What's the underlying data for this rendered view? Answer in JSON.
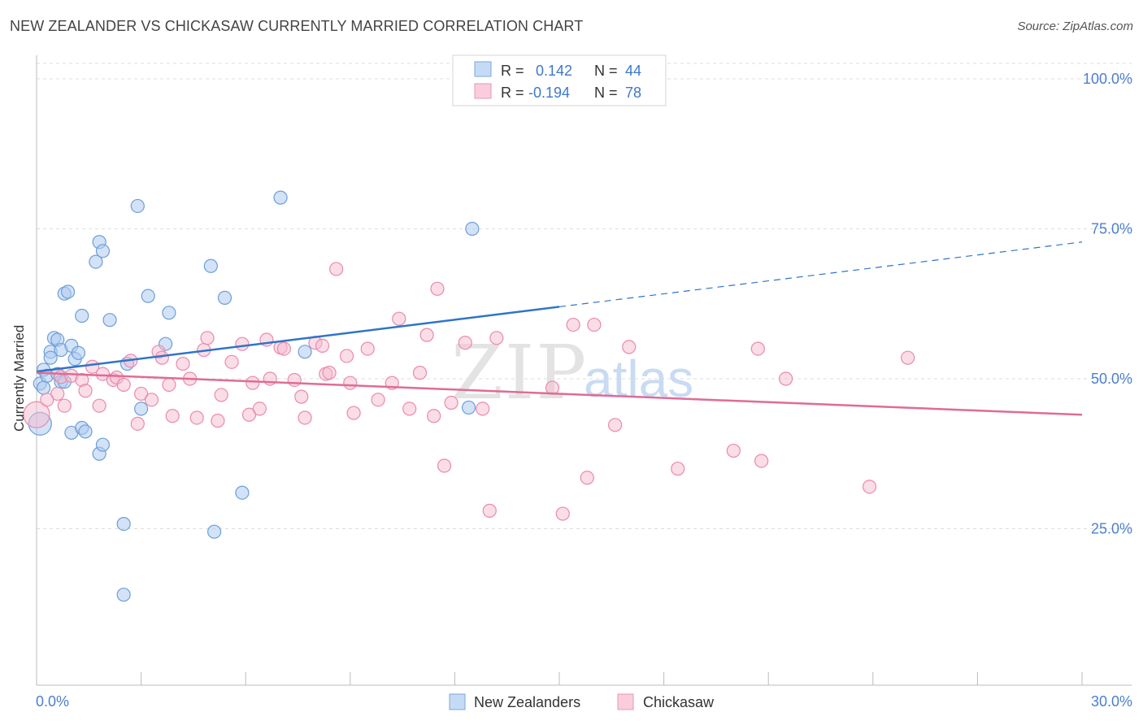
{
  "title": "NEW ZEALANDER VS CHICKASAW CURRENTLY MARRIED CORRELATION CHART",
  "source": "Source: ZipAtlas.com",
  "watermark": {
    "zip": "ZIP",
    "atlas": "atlas"
  },
  "stats": [
    {
      "r_label": "R =",
      "r_value": "0.142",
      "n_label": "N =",
      "n_value": "44",
      "color": "#5b9bd5"
    },
    {
      "r_label": "R =",
      "r_value": "-0.194",
      "n_label": "N =",
      "n_value": "78",
      "color": "#e8739a"
    }
  ],
  "legend": [
    "New Zealanders",
    "Chickasaw"
  ],
  "colors": {
    "blue_fill": "#aecbf0",
    "blue_stroke": "#6b9fd8",
    "blue_line": "#2f74c8",
    "pink_fill": "#f6bcd0",
    "pink_stroke": "#e98aac",
    "pink_line": "#e06b96",
    "axis_text": "#4b7fcf",
    "grid": "#dddddd"
  },
  "chart_data": {
    "type": "scatter",
    "title": "NEW ZEALANDER VS CHICKASAW CURRENTLY MARRIED CORRELATION CHART",
    "xlabel": "",
    "ylabel": "Currently Married",
    "xlim": [
      0,
      30
    ],
    "ylim": [
      0,
      100
    ],
    "x_tick_labels": [
      "0.0%",
      "30.0%"
    ],
    "y_ticks": [
      25,
      50,
      75,
      100
    ],
    "y_tick_labels": [
      "25.0%",
      "50.0%",
      "75.0%",
      "100.0%"
    ],
    "grid": true,
    "legend_position": "bottom",
    "series": [
      {
        "name": "New Zealanders",
        "points": [
          [
            0.1,
            42.5
          ],
          [
            0.1,
            49.2
          ],
          [
            0.2,
            51.5
          ],
          [
            0.2,
            48.5
          ],
          [
            0.3,
            50.5
          ],
          [
            0.4,
            54.5
          ],
          [
            0.4,
            53.5
          ],
          [
            0.5,
            56.8
          ],
          [
            0.6,
            56.5
          ],
          [
            0.6,
            50.8
          ],
          [
            0.7,
            49.5
          ],
          [
            0.7,
            54.8
          ],
          [
            0.8,
            49.5
          ],
          [
            0.8,
            64.2
          ],
          [
            0.9,
            64.5
          ],
          [
            1.0,
            55.5
          ],
          [
            1.0,
            41.0
          ],
          [
            1.1,
            53.3
          ],
          [
            1.2,
            54.3
          ],
          [
            1.3,
            41.8
          ],
          [
            1.3,
            60.5
          ],
          [
            1.4,
            41.2
          ],
          [
            1.7,
            69.5
          ],
          [
            1.8,
            37.5
          ],
          [
            1.8,
            72.8
          ],
          [
            1.9,
            71.3
          ],
          [
            1.9,
            39.0
          ],
          [
            2.1,
            59.8
          ],
          [
            2.5,
            14.0
          ],
          [
            2.5,
            25.8
          ],
          [
            2.6,
            52.5
          ],
          [
            2.9,
            78.8
          ],
          [
            3.0,
            45.0
          ],
          [
            3.2,
            63.8
          ],
          [
            3.7,
            55.8
          ],
          [
            3.8,
            61.0
          ],
          [
            5.0,
            68.8
          ],
          [
            5.1,
            24.5
          ],
          [
            5.4,
            63.5
          ],
          [
            5.9,
            31.0
          ],
          [
            7.0,
            80.2
          ],
          [
            7.7,
            54.5
          ],
          [
            12.4,
            45.2
          ],
          [
            12.5,
            75.0
          ]
        ]
      },
      {
        "name": "Chickasaw",
        "points": [
          [
            0.0,
            44.0
          ],
          [
            0.6,
            47.5
          ],
          [
            0.7,
            50.3
          ],
          [
            0.8,
            45.5
          ],
          [
            1.0,
            50.5
          ],
          [
            1.3,
            49.8
          ],
          [
            1.4,
            48.0
          ],
          [
            1.6,
            52.0
          ],
          [
            1.8,
            45.5
          ],
          [
            1.9,
            50.8
          ],
          [
            2.2,
            49.8
          ],
          [
            2.3,
            50.2
          ],
          [
            2.5,
            49.0
          ],
          [
            2.7,
            53.0
          ],
          [
            2.9,
            42.5
          ],
          [
            3.0,
            47.5
          ],
          [
            3.3,
            46.5
          ],
          [
            3.5,
            54.5
          ],
          [
            3.6,
            53.5
          ],
          [
            3.8,
            49.0
          ],
          [
            3.9,
            43.8
          ],
          [
            4.2,
            52.5
          ],
          [
            4.4,
            50.0
          ],
          [
            4.6,
            43.5
          ],
          [
            4.8,
            54.8
          ],
          [
            4.9,
            56.8
          ],
          [
            5.2,
            43.0
          ],
          [
            5.3,
            47.3
          ],
          [
            5.6,
            52.8
          ],
          [
            5.9,
            55.8
          ],
          [
            6.1,
            44.0
          ],
          [
            6.2,
            49.3
          ],
          [
            6.4,
            45.0
          ],
          [
            6.6,
            56.5
          ],
          [
            6.7,
            50.0
          ],
          [
            7.0,
            55.2
          ],
          [
            7.1,
            55.0
          ],
          [
            7.4,
            49.8
          ],
          [
            7.6,
            47.0
          ],
          [
            7.7,
            43.5
          ],
          [
            8.0,
            56.0
          ],
          [
            8.2,
            55.5
          ],
          [
            8.3,
            50.8
          ],
          [
            8.4,
            51.0
          ],
          [
            8.6,
            68.3
          ],
          [
            8.9,
            53.8
          ],
          [
            9.0,
            49.3
          ],
          [
            9.1,
            44.3
          ],
          [
            9.5,
            55.0
          ],
          [
            9.8,
            46.5
          ],
          [
            10.2,
            49.3
          ],
          [
            10.4,
            60.0
          ],
          [
            10.7,
            45.0
          ],
          [
            11.0,
            51.0
          ],
          [
            11.2,
            57.3
          ],
          [
            11.4,
            43.8
          ],
          [
            11.5,
            65.0
          ],
          [
            11.7,
            35.5
          ],
          [
            11.9,
            46.0
          ],
          [
            12.3,
            56.0
          ],
          [
            12.8,
            45.0
          ],
          [
            13.0,
            28.0
          ],
          [
            13.2,
            56.8
          ],
          [
            14.8,
            48.5
          ],
          [
            15.1,
            27.5
          ],
          [
            15.4,
            59.0
          ],
          [
            15.8,
            33.5
          ],
          [
            16.0,
            59.0
          ],
          [
            16.6,
            42.3
          ],
          [
            17.0,
            55.3
          ],
          [
            18.4,
            35.0
          ],
          [
            20.0,
            38.0
          ],
          [
            20.7,
            55.0
          ],
          [
            20.8,
            36.3
          ],
          [
            21.5,
            50.0
          ],
          [
            23.9,
            32.0
          ],
          [
            25.0,
            53.5
          ],
          [
            0.3,
            46.5
          ]
        ]
      }
    ],
    "trendlines": [
      {
        "series": "New Zealanders",
        "x0": 0,
        "y0": 51.2,
        "x1": 15.0,
        "y1": 62.0,
        "dashed_to_x": 30,
        "dashed_to_y": 72.8
      },
      {
        "series": "Chickasaw",
        "x0": 0,
        "y0": 51.0,
        "x1": 30,
        "y1": 44.0
      }
    ],
    "annotations": [
      "R = 0.142, N = 44",
      "R = -0.194, N = 78"
    ]
  }
}
